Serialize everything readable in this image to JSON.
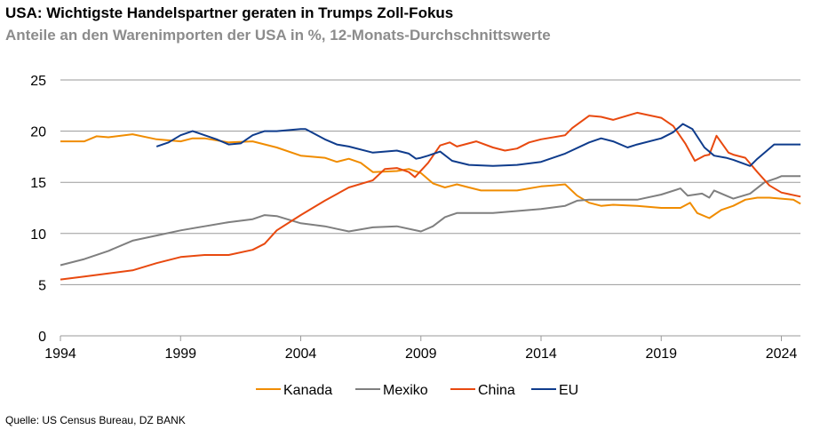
{
  "title": "USA: Wichtigste Handelspartner geraten in Trumps Zoll-Fokus",
  "subtitle": "Anteile an den Warenimporten der USA in %, 12-Monats-Durchschnittswerte",
  "source": "Quelle: US Census Bureau, DZ BANK",
  "chart_data": {
    "type": "line",
    "title": "USA: Wichtigste Handelspartner geraten in Trumps Zoll-Fokus",
    "subtitle": "Anteile an den Warenimporten der USA in %, 12-Monats-Durchschnittswerte",
    "xlim": [
      1994,
      2024.8
    ],
    "ylim": [
      0,
      25
    ],
    "xticks": [
      1994,
      1999,
      2004,
      2009,
      2014,
      2019,
      2024
    ],
    "yticks": [
      0,
      5,
      10,
      15,
      20,
      25
    ],
    "grid": "horizontal",
    "legend": "bottom",
    "series": [
      {
        "name": "Kanada",
        "color": "#f08c00",
        "x": [
          1994,
          1995,
          1995.5,
          1996,
          1997,
          1998,
          1999,
          1999.5,
          2000,
          2001,
          2002,
          2003,
          2004,
          2005,
          2005.5,
          2006,
          2006.5,
          2007,
          2008,
          2008.5,
          2009,
          2009.5,
          2010,
          2010.5,
          2011,
          2011.5,
          2012,
          2013,
          2014,
          2014.5,
          2015,
          2015.5,
          2016,
          2016.5,
          2017,
          2018,
          2019,
          2019.8,
          2020.2,
          2020.5,
          2021,
          2021.5,
          2022,
          2022.5,
          2023,
          2023.5,
          2024,
          2024.5,
          2024.8
        ],
        "y": [
          19.0,
          19.0,
          19.5,
          19.4,
          19.7,
          19.2,
          19.0,
          19.3,
          19.3,
          18.9,
          19.0,
          18.4,
          17.6,
          17.4,
          17.0,
          17.3,
          16.9,
          16.0,
          16.1,
          16.3,
          15.9,
          14.9,
          14.5,
          14.8,
          14.5,
          14.2,
          14.2,
          14.2,
          14.6,
          14.7,
          14.8,
          13.7,
          13.0,
          12.7,
          12.8,
          12.7,
          12.5,
          12.5,
          13.0,
          12.0,
          11.5,
          12.3,
          12.7,
          13.3,
          13.5,
          13.5,
          13.4,
          13.3,
          12.9
        ]
      },
      {
        "name": "Mexiko",
        "color": "#7f7f7f",
        "x": [
          1994,
          1995,
          1996,
          1997,
          1998,
          1999,
          2000,
          2001,
          2002,
          2002.5,
          2003,
          2004,
          2005,
          2006,
          2007,
          2008,
          2009,
          2009.5,
          2010,
          2010.5,
          2011,
          2012,
          2013,
          2014,
          2015,
          2015.5,
          2016,
          2017,
          2018,
          2019,
          2019.8,
          2020.1,
          2020.7,
          2021,
          2021.2,
          2021.7,
          2022,
          2022.7,
          2023.3,
          2023.8,
          2024,
          2024.8
        ],
        "y": [
          6.9,
          7.5,
          8.3,
          9.3,
          9.8,
          10.3,
          10.7,
          11.1,
          11.4,
          11.8,
          11.7,
          11.0,
          10.7,
          10.2,
          10.6,
          10.7,
          10.2,
          10.7,
          11.6,
          12.0,
          12.0,
          12.0,
          12.2,
          12.4,
          12.7,
          13.2,
          13.3,
          13.3,
          13.3,
          13.8,
          14.4,
          13.7,
          13.9,
          13.5,
          14.2,
          13.7,
          13.4,
          13.9,
          15.0,
          15.4,
          15.6,
          15.6
        ]
      },
      {
        "name": "China",
        "color": "#e8490f",
        "x": [
          1994,
          1995,
          1996,
          1997,
          1998,
          1999,
          2000,
          2001,
          2002,
          2002.5,
          2003,
          2004,
          2005,
          2006,
          2007,
          2007.5,
          2008,
          2008.5,
          2008.75,
          2009.3,
          2009.8,
          2010.2,
          2010.5,
          2011.3,
          2012,
          2012.5,
          2013,
          2013.5,
          2014,
          2015,
          2015.3,
          2016,
          2016.5,
          2017,
          2018,
          2019,
          2019.5,
          2020,
          2020.4,
          2020.8,
          2021,
          2021.3,
          2021.8,
          2022,
          2022.5,
          2023,
          2023.5,
          2024,
          2024.8
        ],
        "y": [
          5.5,
          5.8,
          6.1,
          6.4,
          7.1,
          7.7,
          7.9,
          7.9,
          8.4,
          9.0,
          10.3,
          11.8,
          13.2,
          14.5,
          15.2,
          16.3,
          16.4,
          16.0,
          15.5,
          16.9,
          18.6,
          18.9,
          18.5,
          19.0,
          18.4,
          18.1,
          18.3,
          18.9,
          19.2,
          19.6,
          20.3,
          21.5,
          21.4,
          21.1,
          21.8,
          21.3,
          20.5,
          18.8,
          17.1,
          17.6,
          17.7,
          19.55,
          17.9,
          17.7,
          17.4,
          16.0,
          14.7,
          14.0,
          13.6
        ]
      },
      {
        "name": "EU",
        "color": "#0f3c8c",
        "x": [
          1998,
          1998.5,
          1999,
          1999.5,
          2000,
          2000.5,
          2001,
          2001.5,
          2002,
          2002.5,
          2003,
          2004,
          2004.2,
          2005,
          2005.5,
          2006,
          2007,
          2008,
          2008.5,
          2008.8,
          2009,
          2009.3,
          2009.8,
          2010.3,
          2011,
          2012,
          2013,
          2014,
          2015,
          2016,
          2016.5,
          2017,
          2017.6,
          2018,
          2019,
          2019.5,
          2019.9,
          2020.3,
          2020.8,
          2021.2,
          2021.7,
          2022,
          2022.7,
          2023,
          2023.7,
          2024.3,
          2024.8
        ],
        "y": [
          18.5,
          18.9,
          19.6,
          20.0,
          19.6,
          19.2,
          18.7,
          18.8,
          19.6,
          20.0,
          20.0,
          20.2,
          20.2,
          19.2,
          18.7,
          18.5,
          17.9,
          18.1,
          17.8,
          17.3,
          17.4,
          17.6,
          18.0,
          17.1,
          16.7,
          16.6,
          16.7,
          17.0,
          17.8,
          18.9,
          19.3,
          19.0,
          18.4,
          18.7,
          19.3,
          19.9,
          20.7,
          20.2,
          18.4,
          17.6,
          17.4,
          17.2,
          16.6,
          17.3,
          18.7,
          18.7,
          18.7
        ]
      }
    ]
  }
}
